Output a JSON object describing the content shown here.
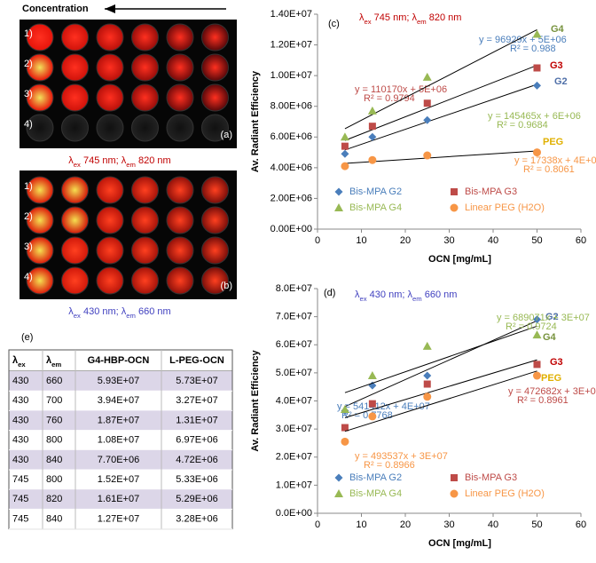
{
  "plates": {
    "arrow_label": "Concentration",
    "row_labels": [
      "1)",
      "2)",
      "3)",
      "4)"
    ],
    "a": {
      "label": "(a)",
      "caption": [
        "λ",
        "ex",
        " 745 nm; λ",
        "em",
        " 820 nm"
      ]
    },
    "b": {
      "label": "(b)",
      "caption": [
        "λ",
        "ex",
        " 430 nm; λ",
        "em",
        " 660 nm"
      ]
    }
  },
  "table": {
    "label": "(e)",
    "header": [
      [
        "λ",
        "ex"
      ],
      [
        "λ",
        "em"
      ],
      "G4-HBP-OCN",
      "L-PEG-OCN"
    ],
    "rows": [
      [
        "430",
        "660",
        "5.93E+07",
        "5.73E+07"
      ],
      [
        "430",
        "700",
        "3.94E+07",
        "3.27E+07"
      ],
      [
        "430",
        "760",
        "1.87E+07",
        "1.31E+07"
      ],
      [
        "430",
        "800",
        "1.08E+07",
        "6.97E+06"
      ],
      [
        "430",
        "840",
        "7.70E+06",
        "4.72E+06"
      ],
      [
        "745",
        "800",
        "1.52E+07",
        "5.33E+06"
      ],
      [
        "745",
        "820",
        "1.61E+07",
        "5.29E+06"
      ],
      [
        "745",
        "840",
        "1.27E+07",
        "3.28E+06"
      ]
    ]
  },
  "chart_data": [
    {
      "type": "scatter",
      "title": "(c)",
      "annotation": [
        "λ",
        "ex",
        " 745 nm; λ",
        "em",
        " 820 nm"
      ],
      "xlabel": "OCN [mg/mL]",
      "ylabel": "Av. Radiant Efficiency",
      "x": [
        6.25,
        12.5,
        25,
        50
      ],
      "xlim": [
        0,
        60
      ],
      "xticks": [
        0,
        10,
        20,
        30,
        40,
        50,
        60
      ],
      "ylim": [
        0,
        14000000
      ],
      "yticks": [
        {
          "value": 0,
          "label": "0.00E+00"
        },
        {
          "value": 2000000,
          "label": "2.00E+06"
        },
        {
          "value": 4000000,
          "label": "4.00E+06"
        },
        {
          "value": 6000000,
          "label": "6.00E+06"
        },
        {
          "value": 8000000,
          "label": "8.00E+06"
        },
        {
          "value": 10000000,
          "label": "1.00E+07"
        },
        {
          "value": 12000000,
          "label": "1.20E+07"
        },
        {
          "value": 14000000,
          "label": "1.40E+07"
        }
      ],
      "series": [
        {
          "name": "Bis-MPA G2",
          "color": "#4a7ebb",
          "marker": "diamond",
          "label": "G2",
          "label_color": "#4f6fa8",
          "values": [
            4900000,
            6000000,
            7100000,
            9350000
          ],
          "equation": "y = 96929x + 5E+06",
          "r2": "R² = 0.988"
        },
        {
          "name": "Bis-MPA G3",
          "color": "#be4b48",
          "marker": "square",
          "label": "G3",
          "label_color": "#c00000",
          "values": [
            5400000,
            6700000,
            8200000,
            10500000
          ],
          "equation": "y = 110170x + 5E+06",
          "r2": "R² = 0.9794"
        },
        {
          "name": "Bis-MPA G4",
          "color": "#98b954",
          "marker": "triangle",
          "label": "G4",
          "label_color": "#76923c",
          "values": [
            6000000,
            7700000,
            9900000,
            12700000
          ],
          "equation": "y = 145465x + 6E+06",
          "r2": "R² = 0.9684"
        },
        {
          "name": "Linear PEG (H2O)",
          "color": "#f79646",
          "marker": "circle",
          "label": "PEG",
          "label_color": "#e0b000",
          "values": [
            4100000,
            4500000,
            4800000,
            5000000
          ],
          "equation": "y = 17338x + 4E+06",
          "r2": "R² = 0.8061"
        }
      ]
    },
    {
      "type": "scatter",
      "title": "(d)",
      "annotation": [
        "λ",
        "ex",
        " 430 nm; λ",
        "em",
        " 660 nm"
      ],
      "xlabel": "OCN [mg/mL]",
      "ylabel": "Av. Radiant Efficiency",
      "x": [
        6.25,
        12.5,
        25,
        50
      ],
      "xlim": [
        0,
        60
      ],
      "xticks": [
        0,
        10,
        20,
        30,
        40,
        50,
        60
      ],
      "ylim": [
        0,
        80000000
      ],
      "yticks": [
        {
          "value": 0,
          "label": "0.0E+00"
        },
        {
          "value": 10000000,
          "label": "1.0E+07"
        },
        {
          "value": 20000000,
          "label": "2.0E+07"
        },
        {
          "value": 30000000,
          "label": "3.0E+07"
        },
        {
          "value": 40000000,
          "label": "4.0E+07"
        },
        {
          "value": 50000000,
          "label": "5.0E+07"
        },
        {
          "value": 60000000,
          "label": "6.0E+07"
        },
        {
          "value": 70000000,
          "label": "7.0E+07"
        },
        {
          "value": 80000000,
          "label": "8.0E+07"
        }
      ],
      "series": [
        {
          "name": "Bis-MPA G2",
          "color": "#4a7ebb",
          "marker": "diamond",
          "label": "G2",
          "label_color": "#4f6fa8",
          "values": [
            36500000,
            45500000,
            49000000,
            69000000
          ],
          "equation": "y = 541412x + 4E+07",
          "r2": "R² = 0.7768"
        },
        {
          "name": "Bis-MPA G3",
          "color": "#be4b48",
          "marker": "square",
          "label": "G3",
          "label_color": "#c00000",
          "values": [
            30500000,
            39000000,
            46000000,
            53000000
          ],
          "equation": "y = 472682x + 3E+07",
          "r2": "R² = 0.8961"
        },
        {
          "name": "Bis-MPA G4",
          "color": "#98b954",
          "marker": "triangle",
          "label": "G4",
          "label_color": "#76923c",
          "values": [
            37000000,
            49000000,
            59500000,
            63500000
          ],
          "equation": "y = 689071x + 3E+07",
          "r2": "R² = 0.9724"
        },
        {
          "name": "Linear PEG (H2O)",
          "color": "#f79646",
          "marker": "circle",
          "label": "PEG",
          "label_color": "#e0b000",
          "values": [
            25500000,
            34500000,
            41500000,
            49000000
          ],
          "equation": "y = 493537x + 3E+07",
          "r2": "R² = 0.8966"
        }
      ]
    }
  ]
}
